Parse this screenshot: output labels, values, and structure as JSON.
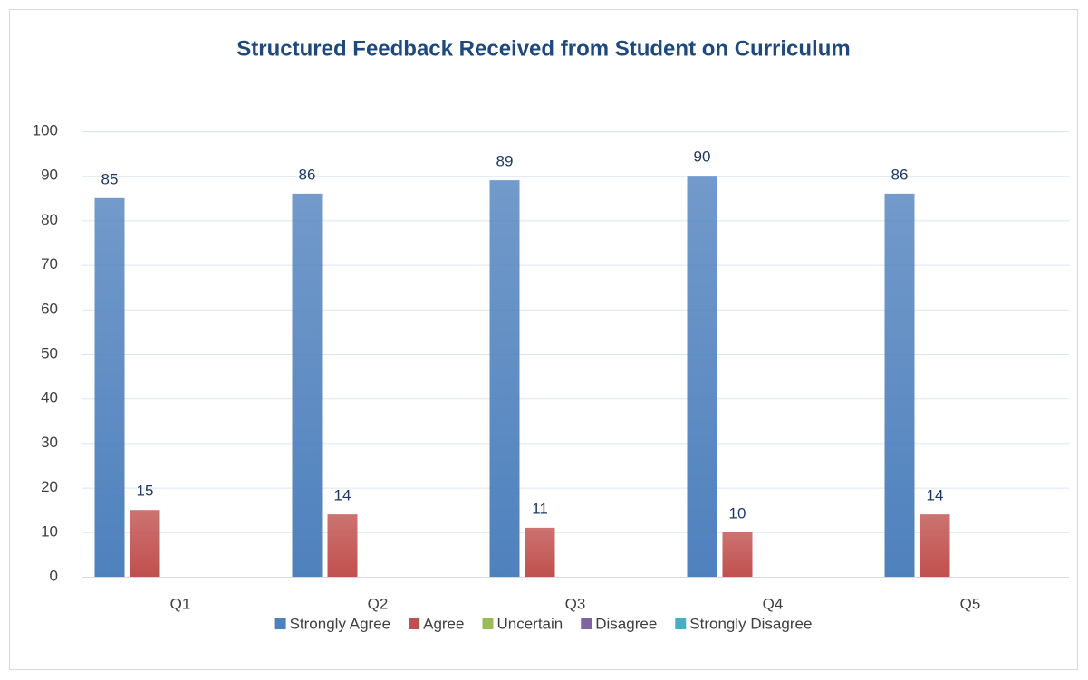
{
  "chart_data": {
    "type": "bar",
    "title": "Structured Feedback Received from Student on Curriculum",
    "categories": [
      "Q1",
      "Q2",
      "Q3",
      "Q4",
      "Q5"
    ],
    "series": [
      {
        "name": "Strongly Agree",
        "color": "#4f81bd",
        "values": [
          85,
          86,
          89,
          90,
          86
        ],
        "data_labels": true
      },
      {
        "name": "Agree",
        "color": "#c0504d",
        "values": [
          15,
          14,
          11,
          10,
          14
        ],
        "data_labels": true
      },
      {
        "name": "Uncertain",
        "color": "#9bbb59",
        "values": [
          0,
          0,
          0,
          0,
          0
        ],
        "data_labels": false
      },
      {
        "name": "Disagree",
        "color": "#8064a2",
        "values": [
          0,
          0,
          0,
          0,
          0
        ],
        "data_labels": false
      },
      {
        "name": "Strongly Disagree",
        "color": "#4bacc6",
        "values": [
          0,
          0,
          0,
          0,
          0
        ],
        "data_labels": false
      }
    ],
    "ylim": [
      0,
      100
    ],
    "yticks": [
      0,
      10,
      20,
      30,
      40,
      50,
      60,
      70,
      80,
      90,
      100
    ],
    "grid": true,
    "legend": "bottom"
  }
}
